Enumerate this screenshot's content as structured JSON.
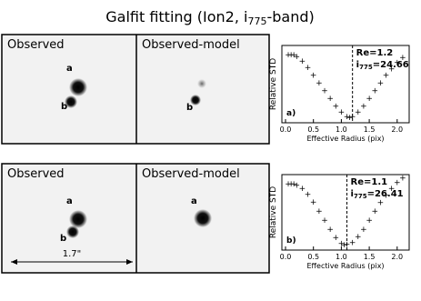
{
  "title": {
    "main": "Galfit fitting  (Ion2, i",
    "sub": "775",
    "rest": "-band)"
  },
  "scale_label": "1.7\"",
  "rows": [
    {
      "panels": [
        {
          "label": "Observed",
          "objects": [
            "a",
            "b"
          ]
        },
        {
          "label": "Observed-model",
          "objects": [
            "b"
          ]
        }
      ],
      "plot": {
        "type": "scatter",
        "ylabel": "Relative STD",
        "xlabel": "Effective Radius (pix)",
        "tag": "a)",
        "re": {
          "value": 1.2,
          "label": "Re=1.2"
        },
        "mag": {
          "main": "i",
          "sub": "775",
          "rest": "=24.66"
        },
        "xlim": [
          0,
          2.15
        ],
        "ylim": [
          0,
          1
        ],
        "xticks": [
          {
            "value": 0,
            "label": "0.0"
          },
          0.5,
          {
            "value": 1,
            "label": "1.0"
          },
          1.5,
          {
            "value": 2,
            "label": "2.0"
          }
        ],
        "x": [
          0.05,
          0.1,
          0.15,
          0.2,
          0.3,
          0.4,
          0.5,
          0.6,
          0.7,
          0.8,
          0.9,
          1.0,
          1.1,
          1.15,
          1.2,
          1.3,
          1.4,
          1.5,
          1.6,
          1.7,
          1.8,
          1.9,
          2.0,
          2.1
        ],
        "values": [
          0.88,
          0.88,
          0.88,
          0.86,
          0.8,
          0.72,
          0.62,
          0.52,
          0.42,
          0.32,
          0.22,
          0.14,
          0.08,
          0.07,
          0.08,
          0.14,
          0.22,
          0.32,
          0.42,
          0.52,
          0.62,
          0.7,
          0.78,
          0.85
        ]
      }
    },
    {
      "panels": [
        {
          "label": "Observed",
          "objects": [
            "a",
            "b"
          ]
        },
        {
          "label": "Observed-model",
          "objects": [
            "a"
          ]
        }
      ],
      "plot": {
        "type": "scatter",
        "ylabel": "Relative STD",
        "xlabel": "Effective Radius (pix)",
        "tag": "b)",
        "re": {
          "value": 1.1,
          "label": "Re=1.1"
        },
        "mag": {
          "main": "i",
          "sub": "775",
          "rest": "=26.41"
        },
        "xlim": [
          0,
          2.15
        ],
        "ylim": [
          0,
          1
        ],
        "xticks": [
          {
            "value": 0,
            "label": "0.0"
          },
          0.5,
          {
            "value": 1,
            "label": "1.0"
          },
          1.5,
          {
            "value": 2,
            "label": "2.0"
          }
        ],
        "x": [
          0.05,
          0.1,
          0.15,
          0.2,
          0.3,
          0.4,
          0.5,
          0.6,
          0.7,
          0.8,
          0.9,
          1.0,
          1.05,
          1.1,
          1.2,
          1.3,
          1.4,
          1.5,
          1.6,
          1.7,
          1.8,
          1.9,
          2.0,
          2.1
        ],
        "values": [
          0.88,
          0.88,
          0.88,
          0.86,
          0.82,
          0.74,
          0.64,
          0.52,
          0.4,
          0.28,
          0.17,
          0.09,
          0.07,
          0.08,
          0.1,
          0.18,
          0.28,
          0.4,
          0.52,
          0.63,
          0.73,
          0.82,
          0.9,
          0.96
        ]
      }
    }
  ]
}
